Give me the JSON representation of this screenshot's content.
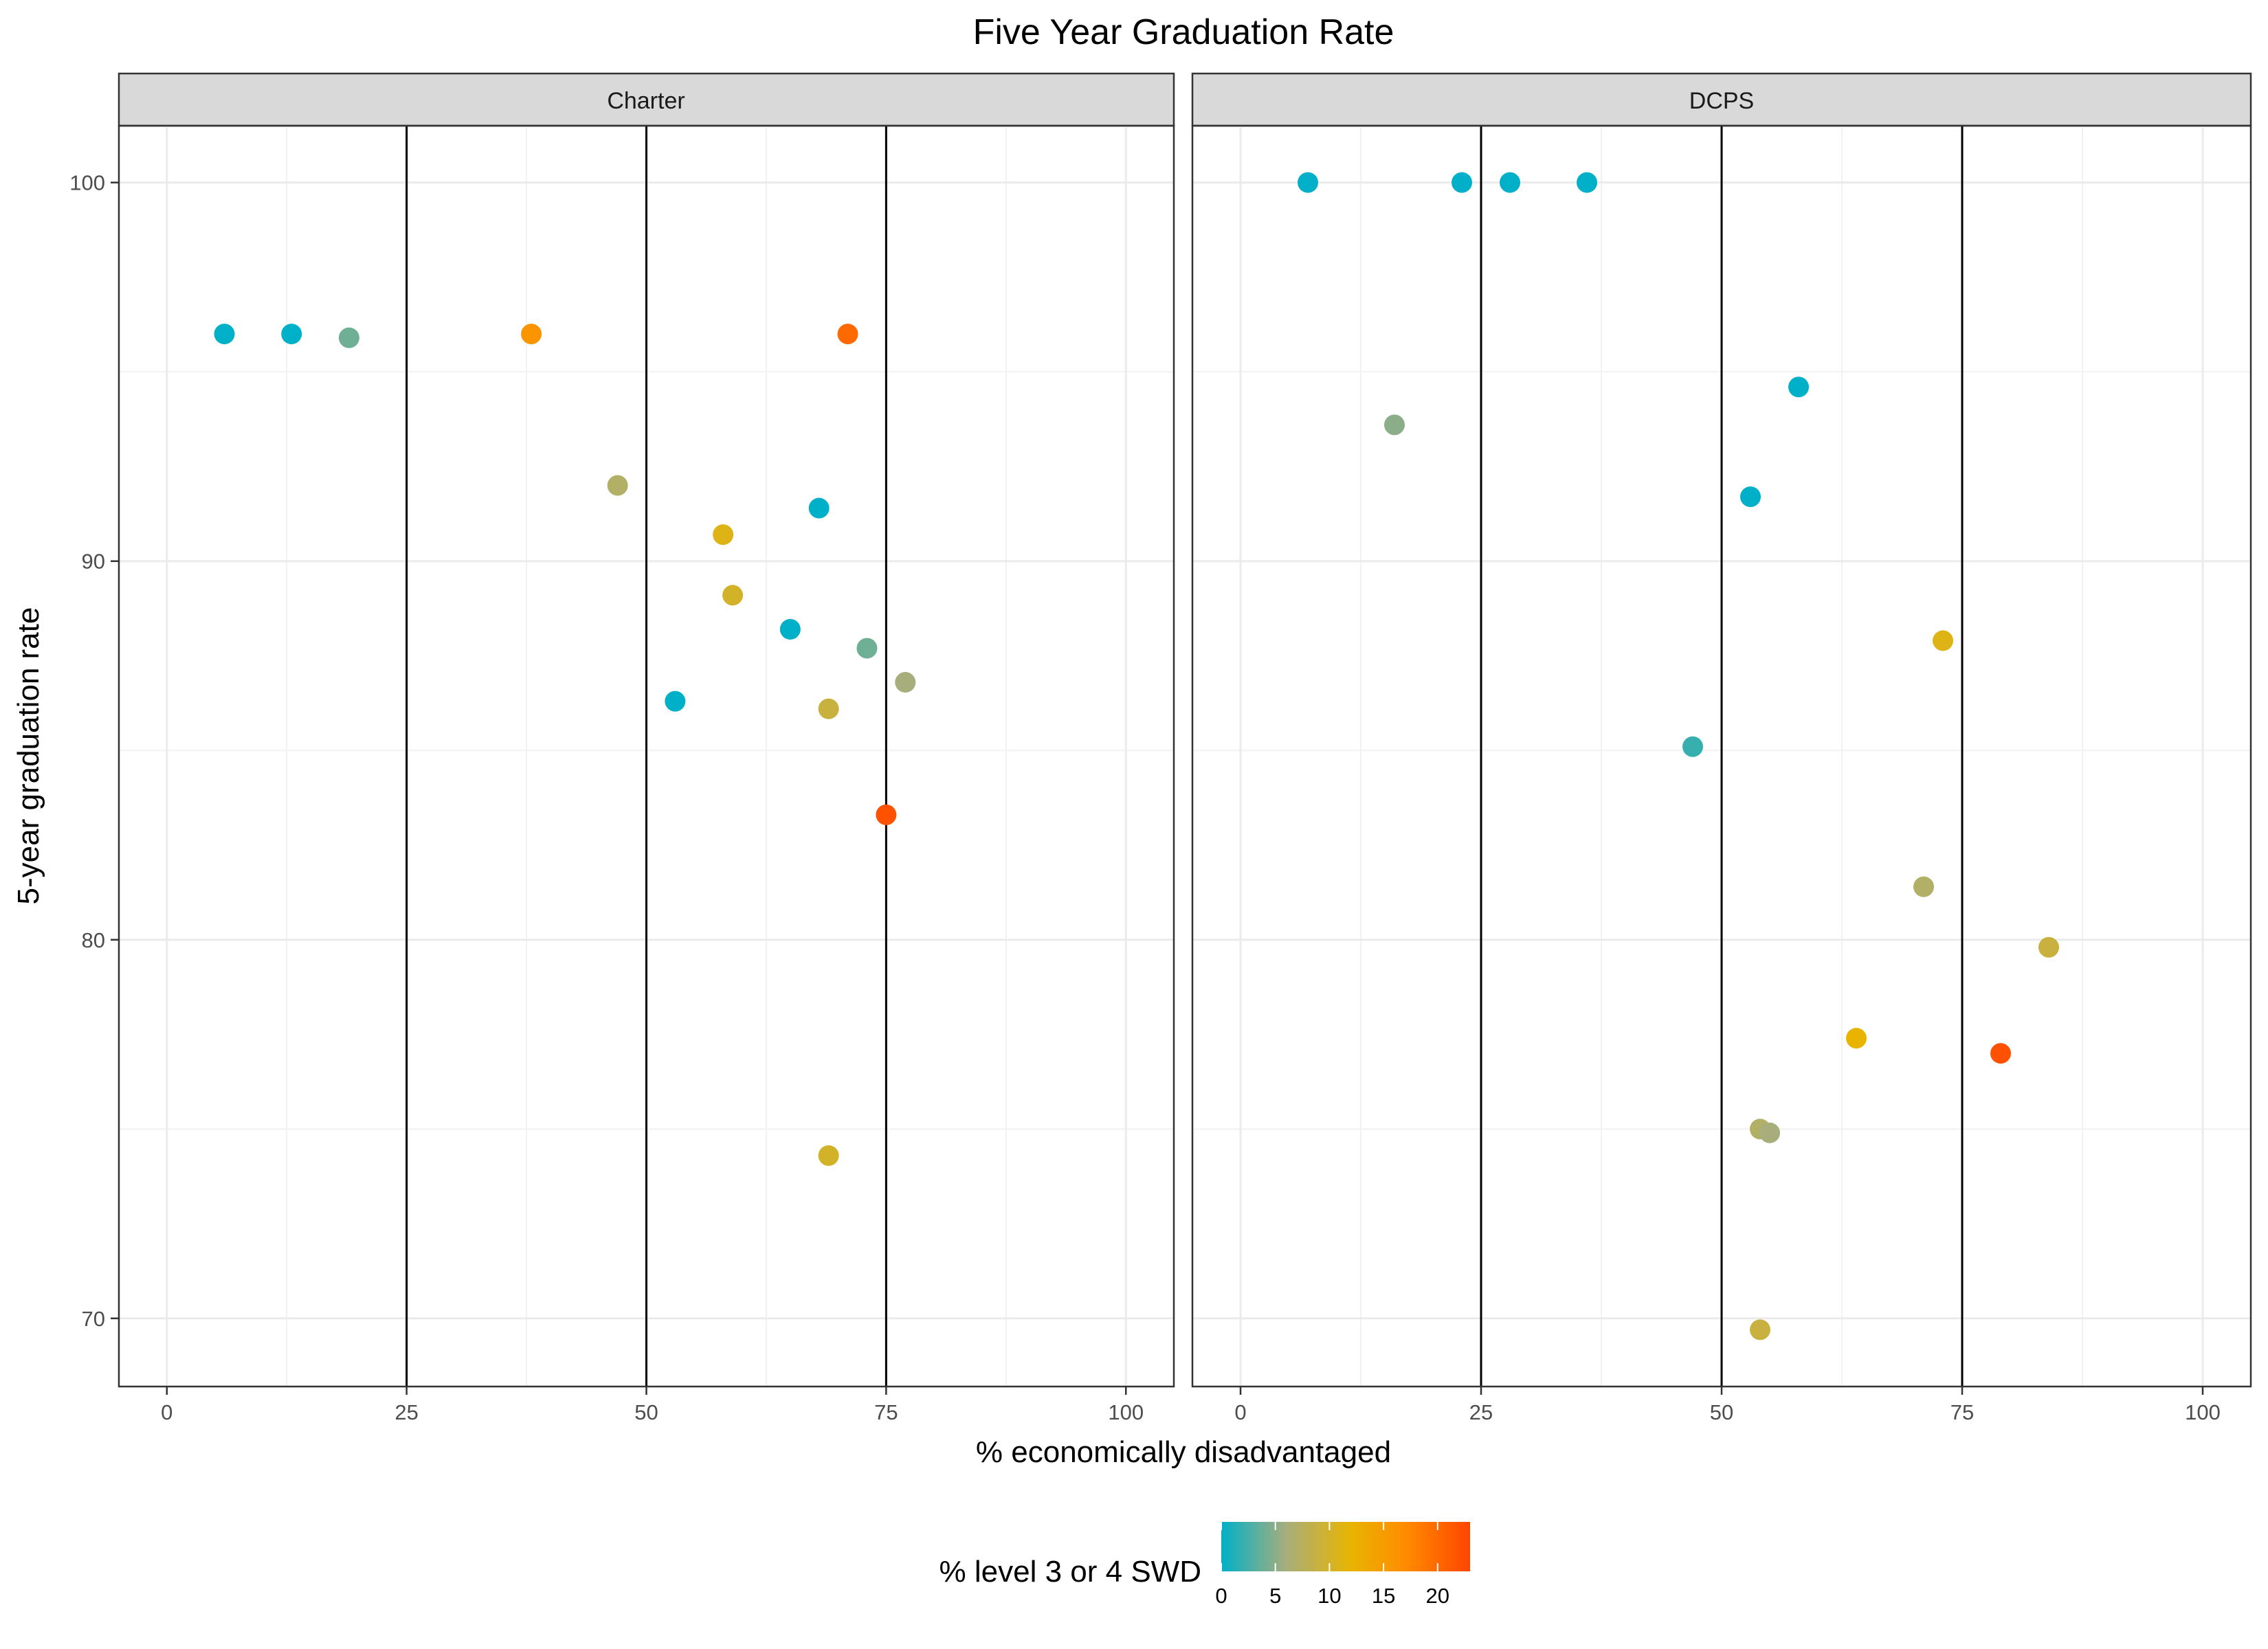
{
  "chart_data": {
    "type": "scatter",
    "title": "Five Year Graduation Rate",
    "xlabel": "% economically disadvantaged",
    "ylabel": "5-year graduation rate",
    "xlim": [
      -5,
      105
    ],
    "ylim": [
      68.2,
      101.5
    ],
    "x_ticks": [
      0,
      25,
      50,
      75,
      100
    ],
    "x_tick_labels": [
      "0",
      "25",
      "50",
      "75",
      "100"
    ],
    "y_ticks": [
      70,
      80,
      90,
      100
    ],
    "y_tick_labels": [
      "70",
      "80",
      "90",
      "100"
    ],
    "grid": true,
    "vlines": [
      25,
      50,
      75
    ],
    "color_scale": {
      "title": "% level 3 or 4 SWD",
      "domain": [
        0,
        23
      ],
      "ticks": [
        0,
        5,
        10,
        15,
        20
      ],
      "tick_labels": [
        "0",
        "5",
        "10",
        "15",
        "20"
      ],
      "stops": [
        {
          "value": 0,
          "color": "#00B0C8"
        },
        {
          "value": 6,
          "color": "#A7AE7C"
        },
        {
          "value": 12,
          "color": "#E8B400"
        },
        {
          "value": 17,
          "color": "#FF8C00"
        },
        {
          "value": 23,
          "color": "#FF4500"
        }
      ]
    },
    "legend_position": "bottom",
    "panels": [
      {
        "label": "Charter",
        "points": [
          {
            "x": 6,
            "y": 96.0,
            "c": 0
          },
          {
            "x": 13,
            "y": 96.0,
            "c": 0
          },
          {
            "x": 19,
            "y": 95.9,
            "c": 4
          },
          {
            "x": 38,
            "y": 96.0,
            "c": 16
          },
          {
            "x": 71,
            "y": 96.0,
            "c": 20
          },
          {
            "x": 47,
            "y": 92.0,
            "c": 7
          },
          {
            "x": 68,
            "y": 91.4,
            "c": 0
          },
          {
            "x": 58,
            "y": 90.7,
            "c": 11
          },
          {
            "x": 59,
            "y": 89.1,
            "c": 10
          },
          {
            "x": 65,
            "y": 88.2,
            "c": 0
          },
          {
            "x": 73,
            "y": 87.7,
            "c": 4
          },
          {
            "x": 77,
            "y": 86.8,
            "c": 6
          },
          {
            "x": 53,
            "y": 86.3,
            "c": 0
          },
          {
            "x": 69,
            "y": 86.1,
            "c": 9
          },
          {
            "x": 75,
            "y": 83.3,
            "c": 22
          },
          {
            "x": 69,
            "y": 74.3,
            "c": 10
          }
        ]
      },
      {
        "label": "DCPS",
        "points": [
          {
            "x": 7,
            "y": 100.0,
            "c": 0
          },
          {
            "x": 23,
            "y": 100.0,
            "c": 0
          },
          {
            "x": 28,
            "y": 100.0,
            "c": 0
          },
          {
            "x": 36,
            "y": 100.0,
            "c": 0
          },
          {
            "x": 58,
            "y": 94.6,
            "c": 0
          },
          {
            "x": 16,
            "y": 93.6,
            "c": 5
          },
          {
            "x": 53,
            "y": 91.7,
            "c": 0
          },
          {
            "x": 73,
            "y": 87.9,
            "c": 11
          },
          {
            "x": 47,
            "y": 85.1,
            "c": 2
          },
          {
            "x": 71,
            "y": 81.4,
            "c": 7
          },
          {
            "x": 84,
            "y": 79.8,
            "c": 9
          },
          {
            "x": 64,
            "y": 77.4,
            "c": 12
          },
          {
            "x": 79,
            "y": 77.0,
            "c": 22
          },
          {
            "x": 54,
            "y": 75.0,
            "c": 7
          },
          {
            "x": 55,
            "y": 74.9,
            "c": 6
          },
          {
            "x": 54,
            "y": 69.7,
            "c": 9
          }
        ]
      }
    ]
  }
}
